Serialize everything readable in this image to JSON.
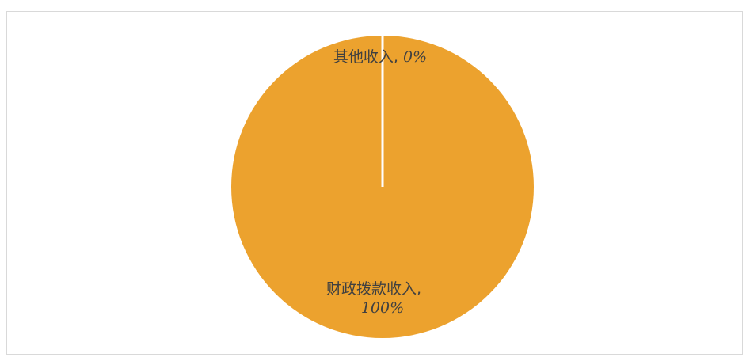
{
  "chart_data": {
    "type": "pie",
    "title": "",
    "categories": [
      "财政拨款收入",
      "其他收入"
    ],
    "values": [
      100,
      0
    ],
    "colors": [
      "#ECA22E",
      "#ED7D31"
    ],
    "data_labels": [
      {
        "category": "财政拨款收入",
        "value_text": "100%"
      },
      {
        "category": "其他收入",
        "value_text": "0%"
      }
    ],
    "legend": "none"
  }
}
